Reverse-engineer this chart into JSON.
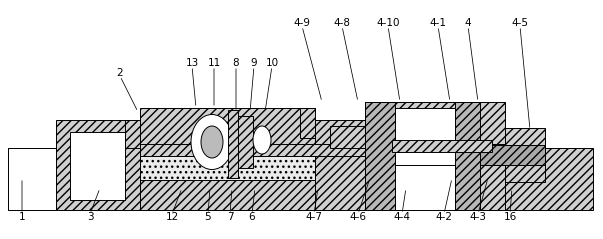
{
  "fig_width": 6.03,
  "fig_height": 2.39,
  "dpi": 100,
  "bg": "#ffffff",
  "lc": "#000000",
  "lw": 0.7,
  "fs": 7.5,
  "hc": "#d0d0d0",
  "labels_top": [
    [
      "4-9",
      302,
      18,
      322,
      102
    ],
    [
      "4-8",
      342,
      18,
      358,
      102
    ],
    [
      "4-10",
      388,
      18,
      400,
      102
    ],
    [
      "4-1",
      438,
      18,
      450,
      102
    ],
    [
      "4",
      468,
      18,
      478,
      102
    ],
    [
      "4-5",
      520,
      18,
      530,
      130
    ]
  ],
  "labels_mid": [
    [
      "13",
      192,
      58,
      196,
      108
    ],
    [
      "11",
      214,
      58,
      214,
      108
    ],
    [
      "8",
      236,
      58,
      236,
      112
    ],
    [
      "9",
      254,
      58,
      250,
      112
    ],
    [
      "10",
      272,
      58,
      265,
      112
    ]
  ],
  "label_2": [
    "2",
    120,
    68,
    138,
    112
  ],
  "labels_bot": [
    [
      "1",
      22,
      222,
      22,
      178
    ],
    [
      "3",
      90,
      222,
      100,
      188
    ],
    [
      "12",
      172,
      222,
      182,
      188
    ],
    [
      "5",
      208,
      222,
      210,
      188
    ],
    [
      "7",
      230,
      222,
      232,
      188
    ],
    [
      "6",
      252,
      222,
      255,
      188
    ],
    [
      "4-7",
      314,
      222,
      318,
      188
    ],
    [
      "4-6",
      358,
      222,
      370,
      178
    ],
    [
      "4-4",
      402,
      222,
      406,
      188
    ],
    [
      "4-2",
      444,
      222,
      452,
      178
    ],
    [
      "4-3",
      478,
      222,
      488,
      178
    ],
    [
      "16",
      510,
      222,
      512,
      188
    ]
  ]
}
